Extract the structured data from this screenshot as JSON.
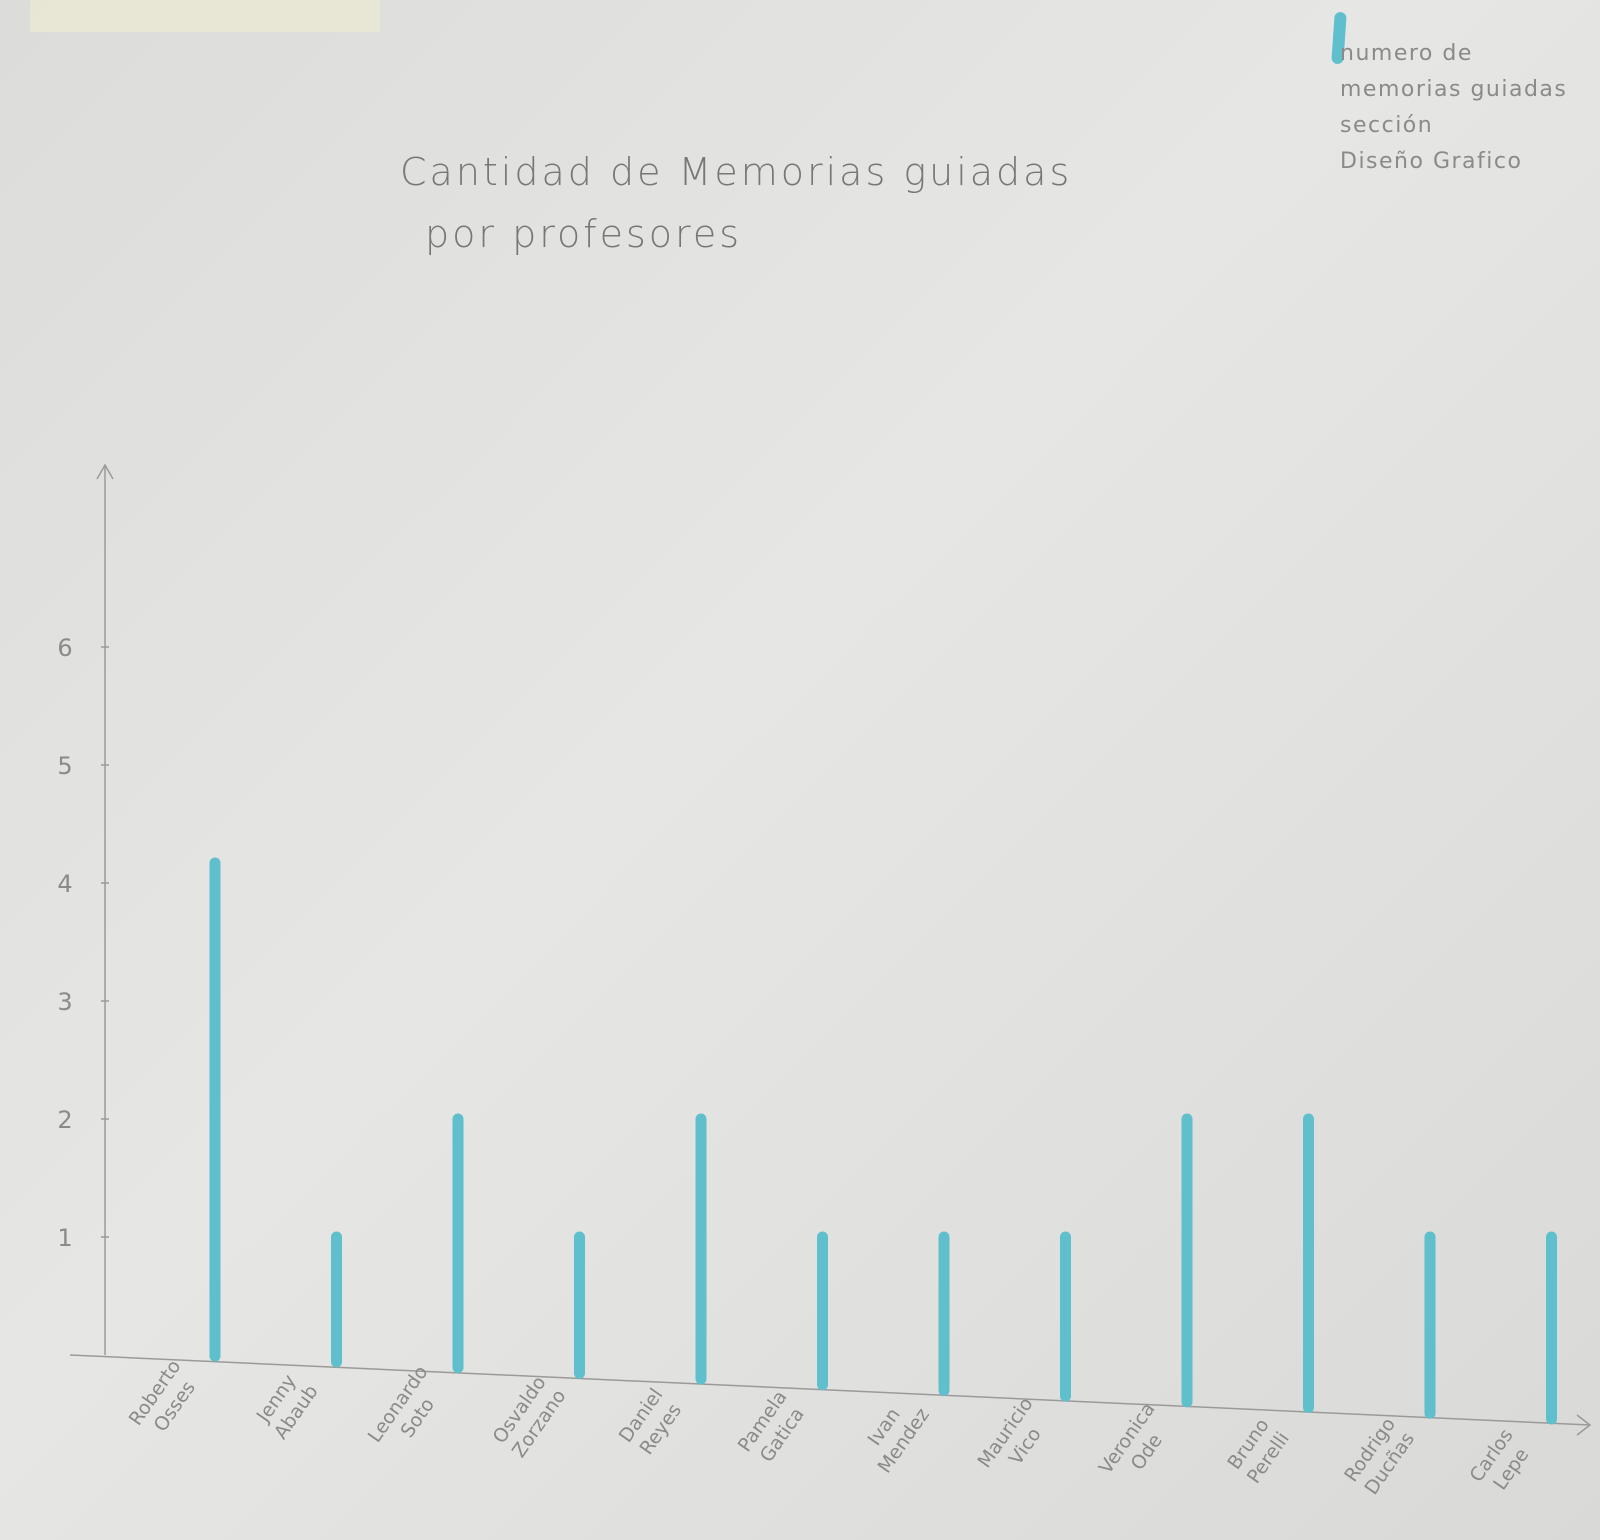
{
  "chart_data": {
    "type": "bar",
    "title": "Cantidad de Memorias guiadas por profesores",
    "title_lines": [
      "Cantidad de Memorias guiadas",
      "por profesores"
    ],
    "legend": {
      "series_name": "numero de memorias guiadas sección Diseño Grafico",
      "lines": [
        "numero de",
        "memorias guiadas",
        "sección",
        "Diseño Grafico"
      ],
      "position": "top-right"
    },
    "xlabel": "",
    "ylabel": "",
    "ylim": [
      0,
      7
    ],
    "yticks": [
      1,
      2,
      3,
      4,
      5,
      6
    ],
    "grid": false,
    "bar_color": "#5fbfcd",
    "categories": [
      [
        "Roberto",
        "Osses"
      ],
      [
        "Jenny",
        "Abaub"
      ],
      [
        "Leonardo",
        "Soto"
      ],
      [
        "Osvaldo",
        "Zorzano"
      ],
      [
        "Daniel",
        "Reyes"
      ],
      [
        "Pamela",
        "Gatica"
      ],
      [
        "Ivan",
        "Mendez"
      ],
      [
        "Mauricio",
        "Vico"
      ],
      [
        "Veronica",
        "Ode"
      ],
      [
        "Bruno",
        "Perelli"
      ],
      [
        "Rodrigo",
        "Ducñas"
      ],
      [
        "Carlos",
        "Lepe"
      ]
    ],
    "values": [
      4,
      1,
      2,
      1,
      2,
      1,
      1,
      1,
      2,
      2,
      1,
      1
    ]
  }
}
